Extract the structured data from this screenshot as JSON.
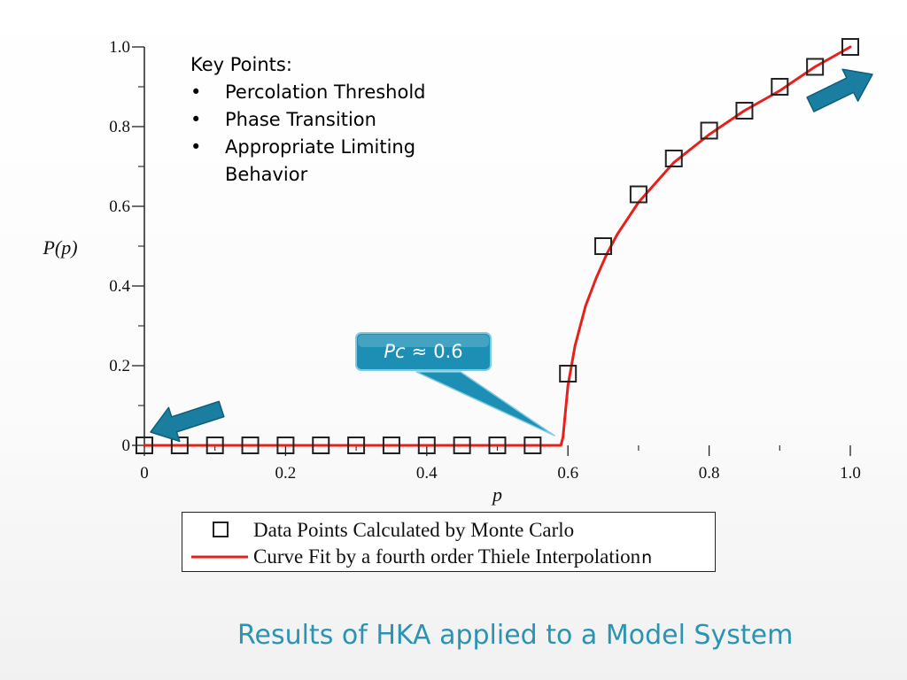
{
  "slide": {
    "title": "Results of HKA applied to a Model System",
    "key_points_heading": "Key Points:",
    "key_points": [
      "Percolation Threshold",
      "Phase Transition",
      "Appropriate Limiting Behavior"
    ],
    "callout": {
      "symbol": "Pc",
      "relation": "≈",
      "value": "0.6"
    }
  },
  "colors": {
    "curve": "#e8201c",
    "marker": "#222222",
    "callout_fill": "#1d8fb5",
    "arrow_fill": "#1a7ea0",
    "title": "#2a94b2"
  },
  "chart_data": {
    "type": "scatter",
    "xlabel": "p",
    "ylabel": "P(p)",
    "xlim": [
      0,
      1.0
    ],
    "ylim": [
      0,
      1.0
    ],
    "x_ticks": [
      0,
      0.2,
      0.4,
      0.6,
      0.8,
      1.0
    ],
    "x_tick_labels": [
      "0",
      "0.2",
      "0.4",
      "0.6",
      "0.8",
      "1.0"
    ],
    "y_ticks": [
      0,
      0.2,
      0.4,
      0.6,
      0.8,
      1.0
    ],
    "y_tick_labels": [
      "0",
      "0.2",
      "0.4",
      "0.6",
      "0.8",
      "1.0"
    ],
    "grid": false,
    "legend_position": "bottom",
    "series": [
      {
        "name": "Data Points Calculated by Monte Carlo",
        "kind": "scatter",
        "marker": "open-square",
        "x": [
          0,
          0.05,
          0.1,
          0.15,
          0.2,
          0.25,
          0.3,
          0.35,
          0.4,
          0.45,
          0.5,
          0.55,
          0.6,
          0.65,
          0.7,
          0.75,
          0.8,
          0.85,
          0.9,
          0.95,
          1.0
        ],
        "y": [
          0,
          0,
          0,
          0,
          0,
          0,
          0,
          0,
          0,
          0,
          0,
          0,
          0.18,
          0.5,
          0.63,
          0.72,
          0.79,
          0.84,
          0.9,
          0.95,
          1.0
        ]
      },
      {
        "name": "Curve Fit by a fourth order Thiele Interpolation",
        "kind": "line",
        "x": [
          0,
          0.59,
          0.593,
          0.6,
          0.61,
          0.625,
          0.64,
          0.655,
          0.67,
          0.7,
          0.73,
          0.75,
          0.8,
          0.85,
          0.9,
          0.95,
          1.0
        ],
        "y": [
          0,
          0,
          0.02,
          0.15,
          0.25,
          0.35,
          0.42,
          0.48,
          0.53,
          0.61,
          0.67,
          0.71,
          0.78,
          0.84,
          0.89,
          0.95,
          1.0
        ]
      }
    ],
    "legend_overflow_text": "n"
  }
}
